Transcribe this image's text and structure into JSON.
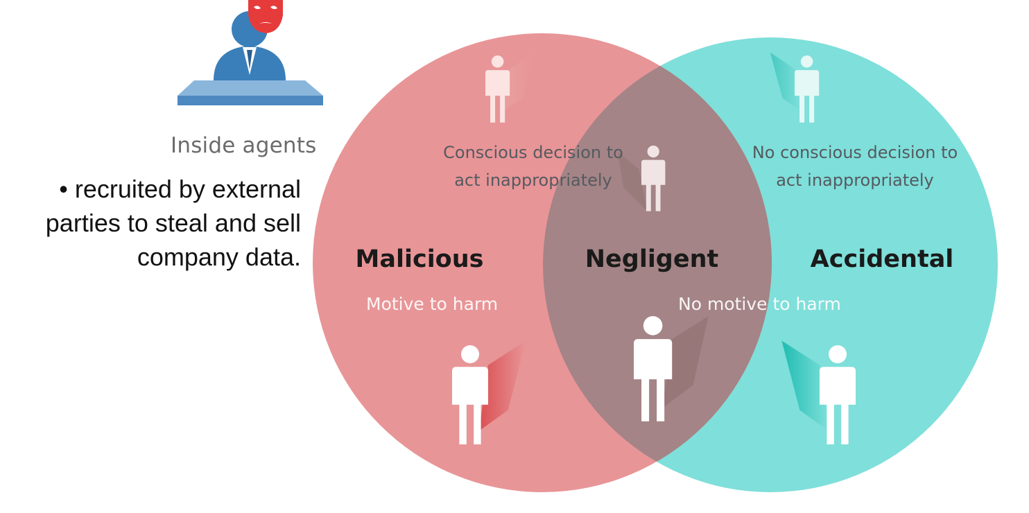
{
  "agent": {
    "caption": "Inside agents",
    "icon": "insider-with-mask-icon"
  },
  "bullet": {
    "text": "recruited by external parties to steal and sell company data."
  },
  "venn": {
    "colors": {
      "left": "#e47a7c",
      "right": "#4fd3c9",
      "overlap": "#a48486"
    },
    "left": {
      "title": "Malicious",
      "description": "Conscious decision to act inappropriately",
      "motive": "Motive to harm"
    },
    "center": {
      "title": "Negligent"
    },
    "right": {
      "title": "Accidental",
      "description": "No conscious decision to act inappropriately",
      "motive": "No motive to harm"
    }
  }
}
